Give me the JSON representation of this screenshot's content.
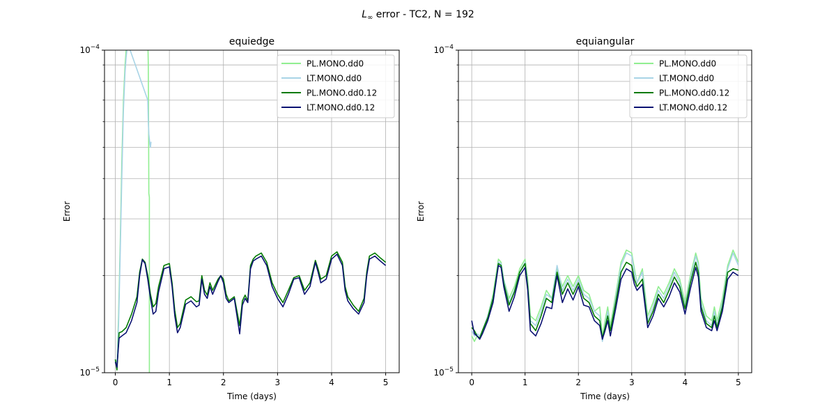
{
  "figure": {
    "suptitle_prefix": "L",
    "suptitle_sub": "∞",
    "suptitle_rest": " error - TC2, N = 192"
  },
  "chart_data": [
    {
      "type": "line",
      "title": "equiedge",
      "xlabel": "Time (days)",
      "ylabel": "Error",
      "xlim": [
        -0.2,
        5.25
      ],
      "ylim": [
        1e-05,
        0.0001
      ],
      "yscale": "log",
      "xticks": [
        0,
        1,
        2,
        3,
        4,
        5
      ],
      "xtick_labels": [
        "0",
        "1",
        "2",
        "3",
        "4",
        "5"
      ],
      "ytick_major": [
        {
          "value": 1e-05,
          "mantissa": "10",
          "exponent": "−5"
        },
        {
          "value": 0.0001,
          "mantissa": "10",
          "exponent": "−4"
        }
      ],
      "ytick_minor": [
        2e-05,
        3e-05,
        4e-05,
        5e-05,
        6e-05,
        7e-05,
        8e-05,
        9e-05
      ],
      "grid": true,
      "legend_position": "top-right",
      "series": [
        {
          "name": "PL.MONO.dd0",
          "color": "#90ee90",
          "x": [
            0.0,
            0.03,
            0.06,
            0.09,
            0.12,
            0.15,
            0.18,
            0.2,
            0.23,
            0.25,
            0.6,
            0.61,
            0.615,
            0.62,
            0.63,
            0.63,
            0.64
          ],
          "y": [
            1.1e-05,
            1.05e-05,
            1.5e-05,
            2.5e-05,
            4.5e-05,
            7e-05,
            9e-05,
            0.0001,
            0.000105,
            0.00011,
            0.00011,
            9e-05,
            6e-05,
            3.6e-05,
            3.5e-05,
            9.5e-06,
            9.5e-06
          ]
        },
        {
          "name": "LT.MONO.dd0",
          "color": "#a8d4e6",
          "x": [
            0.0,
            0.03,
            0.06,
            0.09,
            0.12,
            0.15,
            0.18,
            0.2,
            0.23,
            0.6,
            0.61,
            0.62,
            0.63,
            0.64,
            0.65,
            0.66
          ],
          "y": [
            1.1e-05,
            1.05e-05,
            1.4e-05,
            2.3e-05,
            4e-05,
            6.5e-05,
            8.5e-05,
            9.5e-05,
            0.000105,
            7e-05,
            6e-05,
            5.5e-05,
            5.3e-05,
            5.1e-05,
            5e-05,
            5.2e-05
          ]
        },
        {
          "name": "PL.MONO.dd0.12",
          "color": "#007a00",
          "x": [
            0.0,
            0.03,
            0.07,
            0.12,
            0.2,
            0.3,
            0.4,
            0.45,
            0.5,
            0.55,
            0.6,
            0.65,
            0.7,
            0.75,
            0.8,
            0.9,
            1.0,
            1.05,
            1.1,
            1.15,
            1.2,
            1.3,
            1.4,
            1.5,
            1.55,
            1.6,
            1.65,
            1.7,
            1.75,
            1.8,
            1.9,
            1.95,
            2.0,
            2.05,
            2.1,
            2.2,
            2.25,
            2.3,
            2.35,
            2.4,
            2.45,
            2.5,
            2.55,
            2.6,
            2.7,
            2.8,
            2.9,
            3.0,
            3.1,
            3.2,
            3.3,
            3.4,
            3.5,
            3.6,
            3.7,
            3.75,
            3.8,
            3.9,
            4.0,
            4.1,
            4.2,
            4.25,
            4.3,
            4.4,
            4.5,
            4.6,
            4.65,
            4.7,
            4.8,
            4.9,
            5.0
          ],
          "y": [
            1.1e-05,
            1.02e-05,
            1.33e-05,
            1.34e-05,
            1.38e-05,
            1.52e-05,
            1.72e-05,
            2.05e-05,
            2.25e-05,
            2.2e-05,
            2e-05,
            1.75e-05,
            1.6e-05,
            1.64e-05,
            1.85e-05,
            2.15e-05,
            2.18e-05,
            1.9e-05,
            1.56e-05,
            1.38e-05,
            1.42e-05,
            1.68e-05,
            1.72e-05,
            1.66e-05,
            1.67e-05,
            2e-05,
            1.8e-05,
            1.74e-05,
            1.9e-05,
            1.8e-05,
            1.95e-05,
            2e-05,
            1.95e-05,
            1.75e-05,
            1.67e-05,
            1.72e-05,
            1.55e-05,
            1.4e-05,
            1.67e-05,
            1.74e-05,
            1.67e-05,
            2.15e-05,
            2.25e-05,
            2.3e-05,
            2.35e-05,
            2.2e-05,
            1.9e-05,
            1.75e-05,
            1.65e-05,
            1.8e-05,
            1.97e-05,
            2e-05,
            1.8e-05,
            1.9e-05,
            2.23e-05,
            2.1e-05,
            1.95e-05,
            2e-05,
            2.3e-05,
            2.37e-05,
            2.2e-05,
            1.85e-05,
            1.72e-05,
            1.62e-05,
            1.55e-05,
            1.7e-05,
            2.05e-05,
            2.3e-05,
            2.35e-05,
            2.27e-05,
            2.2e-05
          ]
        },
        {
          "name": "LT.MONO.dd0.12",
          "color": "#0a1172",
          "x": [
            0.0,
            0.03,
            0.07,
            0.12,
            0.2,
            0.3,
            0.4,
            0.45,
            0.5,
            0.55,
            0.6,
            0.65,
            0.7,
            0.75,
            0.8,
            0.9,
            1.0,
            1.05,
            1.1,
            1.15,
            1.2,
            1.3,
            1.4,
            1.5,
            1.55,
            1.6,
            1.65,
            1.7,
            1.75,
            1.8,
            1.9,
            1.95,
            2.0,
            2.05,
            2.1,
            2.2,
            2.25,
            2.3,
            2.35,
            2.4,
            2.45,
            2.5,
            2.55,
            2.6,
            2.7,
            2.8,
            2.9,
            3.0,
            3.1,
            3.2,
            3.3,
            3.4,
            3.5,
            3.6,
            3.7,
            3.75,
            3.8,
            3.9,
            4.0,
            4.1,
            4.2,
            4.25,
            4.3,
            4.4,
            4.5,
            4.6,
            4.65,
            4.7,
            4.8,
            4.9,
            5.0
          ],
          "y": [
            1.08e-05,
            1.04e-05,
            1.28e-05,
            1.3e-05,
            1.33e-05,
            1.45e-05,
            1.65e-05,
            2e-05,
            2.24e-05,
            2.18e-05,
            1.95e-05,
            1.7e-05,
            1.52e-05,
            1.55e-05,
            1.78e-05,
            2.1e-05,
            2.13e-05,
            1.85e-05,
            1.5e-05,
            1.33e-05,
            1.38e-05,
            1.63e-05,
            1.67e-05,
            1.6e-05,
            1.62e-05,
            1.95e-05,
            1.75e-05,
            1.7e-05,
            1.85e-05,
            1.75e-05,
            1.92e-05,
            2e-05,
            1.9e-05,
            1.7e-05,
            1.65e-05,
            1.7e-05,
            1.5e-05,
            1.32e-05,
            1.62e-05,
            1.7e-05,
            1.65e-05,
            2.1e-05,
            2.22e-05,
            2.25e-05,
            2.3e-05,
            2.15e-05,
            1.85e-05,
            1.7e-05,
            1.6e-05,
            1.75e-05,
            1.95e-05,
            1.97e-05,
            1.75e-05,
            1.85e-05,
            2.2e-05,
            2.05e-05,
            1.9e-05,
            1.95e-05,
            2.25e-05,
            2.33e-05,
            2.15e-05,
            1.8e-05,
            1.67e-05,
            1.58e-05,
            1.52e-05,
            1.65e-05,
            2e-05,
            2.25e-05,
            2.3e-05,
            2.22e-05,
            2.15e-05
          ]
        }
      ]
    },
    {
      "type": "line",
      "title": "equiangular",
      "xlabel": "Time (days)",
      "ylabel": "Error",
      "xlim": [
        -0.25,
        5.25
      ],
      "ylim": [
        1e-05,
        0.0001
      ],
      "yscale": "log",
      "xticks": [
        0,
        1,
        2,
        3,
        4,
        5
      ],
      "xtick_labels": [
        "0",
        "1",
        "2",
        "3",
        "4",
        "5"
      ],
      "ytick_major": [
        {
          "value": 1e-05,
          "mantissa": "10",
          "exponent": "−5"
        },
        {
          "value": 0.0001,
          "mantissa": "10",
          "exponent": "−4"
        }
      ],
      "ytick_minor": [
        2e-05,
        3e-05,
        4e-05,
        5e-05,
        6e-05,
        7e-05,
        8e-05,
        9e-05
      ],
      "grid": true,
      "legend_position": "top-right",
      "series": [
        {
          "name": "PL.MONO.dd0",
          "color": "#90ee90",
          "x": [
            0.0,
            0.05,
            0.1,
            0.15,
            0.2,
            0.3,
            0.4,
            0.5,
            0.55,
            0.6,
            0.7,
            0.8,
            0.9,
            1.0,
            1.05,
            1.1,
            1.2,
            1.3,
            1.4,
            1.5,
            1.6,
            1.7,
            1.8,
            1.9,
            2.0,
            2.1,
            2.2,
            2.3,
            2.4,
            2.45,
            2.5,
            2.55,
            2.6,
            2.7,
            2.8,
            2.9,
            3.0,
            3.05,
            3.1,
            3.2,
            3.3,
            3.4,
            3.5,
            3.6,
            3.7,
            3.8,
            3.9,
            4.0,
            4.1,
            4.2,
            4.25,
            4.3,
            4.4,
            4.5,
            4.55,
            4.6,
            4.7,
            4.8,
            4.9,
            5.0
          ],
          "y": [
            1.3e-05,
            1.25e-05,
            1.3e-05,
            1.28e-05,
            1.35e-05,
            1.5e-05,
            1.75e-05,
            2.25e-05,
            2.2e-05,
            1.95e-05,
            1.7e-05,
            1.85e-05,
            2.1e-05,
            2.25e-05,
            1.95e-05,
            1.5e-05,
            1.45e-05,
            1.6e-05,
            1.8e-05,
            1.7e-05,
            2.1e-05,
            1.85e-05,
            2e-05,
            1.85e-05,
            2e-05,
            1.8e-05,
            1.75e-05,
            1.55e-05,
            1.6e-05,
            1.3e-05,
            1.45e-05,
            1.6e-05,
            1.4e-05,
            1.75e-05,
            2.2e-05,
            2.4e-05,
            2.35e-05,
            2.1e-05,
            1.9e-05,
            2.1e-05,
            1.5e-05,
            1.65e-05,
            1.85e-05,
            1.75e-05,
            1.9e-05,
            2.1e-05,
            1.95e-05,
            1.65e-05,
            2e-05,
            2.35e-05,
            2.2e-05,
            1.7e-05,
            1.5e-05,
            1.45e-05,
            1.6e-05,
            1.45e-05,
            1.7e-05,
            2.15e-05,
            2.4e-05,
            2.2e-05
          ]
        },
        {
          "name": "LT.MONO.dd0",
          "color": "#a8d4e6",
          "x": [
            0.0,
            0.05,
            0.1,
            0.15,
            0.2,
            0.3,
            0.4,
            0.5,
            0.55,
            0.6,
            0.7,
            0.8,
            0.9,
            1.0,
            1.05,
            1.1,
            1.2,
            1.3,
            1.4,
            1.5,
            1.6,
            1.7,
            1.8,
            1.9,
            2.0,
            2.1,
            2.2,
            2.3,
            2.4,
            2.45,
            2.5,
            2.55,
            2.6,
            2.7,
            2.8,
            2.9,
            3.0,
            3.05,
            3.1,
            3.2,
            3.3,
            3.4,
            3.5,
            3.6,
            3.7,
            3.8,
            3.9,
            4.0,
            4.1,
            4.2,
            4.25,
            4.3,
            4.4,
            4.5,
            4.55,
            4.6,
            4.7,
            4.8,
            4.9,
            5.0
          ],
          "y": [
            1.35e-05,
            1.3e-05,
            1.32e-05,
            1.3e-05,
            1.35e-05,
            1.5e-05,
            1.72e-05,
            2.2e-05,
            2.18e-05,
            1.95e-05,
            1.65e-05,
            1.8e-05,
            2.05e-05,
            2.2e-05,
            1.9e-05,
            1.45e-05,
            1.4e-05,
            1.55e-05,
            1.75e-05,
            1.7e-05,
            2.15e-05,
            1.8e-05,
            1.95e-05,
            1.8e-05,
            1.95e-05,
            1.75e-05,
            1.7e-05,
            1.55e-05,
            1.5e-05,
            1.25e-05,
            1.4e-05,
            1.55e-05,
            1.35e-05,
            1.7e-05,
            2.15e-05,
            2.35e-05,
            2.3e-05,
            2.05e-05,
            1.9e-05,
            2.05e-05,
            1.45e-05,
            1.6e-05,
            1.8e-05,
            1.7e-05,
            1.85e-05,
            2.05e-05,
            1.9e-05,
            1.6e-05,
            1.95e-05,
            2.3e-05,
            2.15e-05,
            1.65e-05,
            1.45e-05,
            1.4e-05,
            1.55e-05,
            1.4e-05,
            1.65e-05,
            2.1e-05,
            2.35e-05,
            2.15e-05
          ]
        },
        {
          "name": "PL.MONO.dd0.12",
          "color": "#007a00",
          "x": [
            0.0,
            0.05,
            0.1,
            0.15,
            0.2,
            0.3,
            0.4,
            0.5,
            0.55,
            0.6,
            0.7,
            0.8,
            0.9,
            1.0,
            1.05,
            1.1,
            1.2,
            1.3,
            1.4,
            1.5,
            1.6,
            1.7,
            1.8,
            1.9,
            2.0,
            2.1,
            2.2,
            2.3,
            2.4,
            2.45,
            2.5,
            2.55,
            2.6,
            2.7,
            2.8,
            2.9,
            3.0,
            3.05,
            3.1,
            3.2,
            3.3,
            3.4,
            3.5,
            3.6,
            3.7,
            3.8,
            3.9,
            4.0,
            4.1,
            4.2,
            4.25,
            4.3,
            4.4,
            4.5,
            4.55,
            4.6,
            4.7,
            4.8,
            4.9,
            5.0
          ],
          "y": [
            1.38e-05,
            1.35e-05,
            1.3e-05,
            1.28e-05,
            1.35e-05,
            1.48e-05,
            1.7e-05,
            2.18e-05,
            2.15e-05,
            1.9e-05,
            1.62e-05,
            1.78e-05,
            2.05e-05,
            2.18e-05,
            1.85e-05,
            1.42e-05,
            1.35e-05,
            1.5e-05,
            1.7e-05,
            1.65e-05,
            2.05e-05,
            1.75e-05,
            1.9e-05,
            1.75e-05,
            1.9e-05,
            1.7e-05,
            1.65e-05,
            1.5e-05,
            1.45e-05,
            1.28e-05,
            1.38e-05,
            1.5e-05,
            1.35e-05,
            1.65e-05,
            2.05e-05,
            2.2e-05,
            2.15e-05,
            1.95e-05,
            1.85e-05,
            1.95e-05,
            1.42e-05,
            1.55e-05,
            1.75e-05,
            1.65e-05,
            1.8e-05,
            1.98e-05,
            1.85e-05,
            1.58e-05,
            1.9e-05,
            2.2e-05,
            2.05e-05,
            1.6e-05,
            1.42e-05,
            1.38e-05,
            1.5e-05,
            1.38e-05,
            1.6e-05,
            2.05e-05,
            2.1e-05,
            2.08e-05
          ]
        },
        {
          "name": "LT.MONO.dd0.12",
          "color": "#0a1172",
          "x": [
            0.0,
            0.05,
            0.1,
            0.15,
            0.2,
            0.3,
            0.4,
            0.5,
            0.55,
            0.6,
            0.7,
            0.8,
            0.9,
            1.0,
            1.05,
            1.1,
            1.2,
            1.3,
            1.4,
            1.5,
            1.6,
            1.7,
            1.8,
            1.9,
            2.0,
            2.1,
            2.2,
            2.3,
            2.4,
            2.45,
            2.5,
            2.55,
            2.6,
            2.7,
            2.8,
            2.9,
            3.0,
            3.05,
            3.1,
            3.2,
            3.3,
            3.4,
            3.5,
            3.6,
            3.7,
            3.8,
            3.9,
            4.0,
            4.1,
            4.2,
            4.25,
            4.3,
            4.4,
            4.5,
            4.55,
            4.6,
            4.7,
            4.8,
            4.9,
            5.0
          ],
          "y": [
            1.45e-05,
            1.32e-05,
            1.3e-05,
            1.27e-05,
            1.32e-05,
            1.45e-05,
            1.65e-05,
            2.15e-05,
            2.12e-05,
            1.85e-05,
            1.55e-05,
            1.72e-05,
            2e-05,
            2.12e-05,
            1.8e-05,
            1.35e-05,
            1.3e-05,
            1.42e-05,
            1.6e-05,
            1.58e-05,
            2e-05,
            1.65e-05,
            1.82e-05,
            1.68e-05,
            1.85e-05,
            1.62e-05,
            1.6e-05,
            1.45e-05,
            1.4e-05,
            1.27e-05,
            1.35e-05,
            1.45e-05,
            1.3e-05,
            1.58e-05,
            1.95e-05,
            2.1e-05,
            2.05e-05,
            1.88e-05,
            1.8e-05,
            1.88e-05,
            1.38e-05,
            1.5e-05,
            1.7e-05,
            1.6e-05,
            1.72e-05,
            1.9e-05,
            1.78e-05,
            1.52e-05,
            1.82e-05,
            2.12e-05,
            1.98e-05,
            1.55e-05,
            1.38e-05,
            1.35e-05,
            1.45e-05,
            1.35e-05,
            1.55e-05,
            1.95e-05,
            2.05e-05,
            2e-05
          ]
        }
      ]
    }
  ]
}
